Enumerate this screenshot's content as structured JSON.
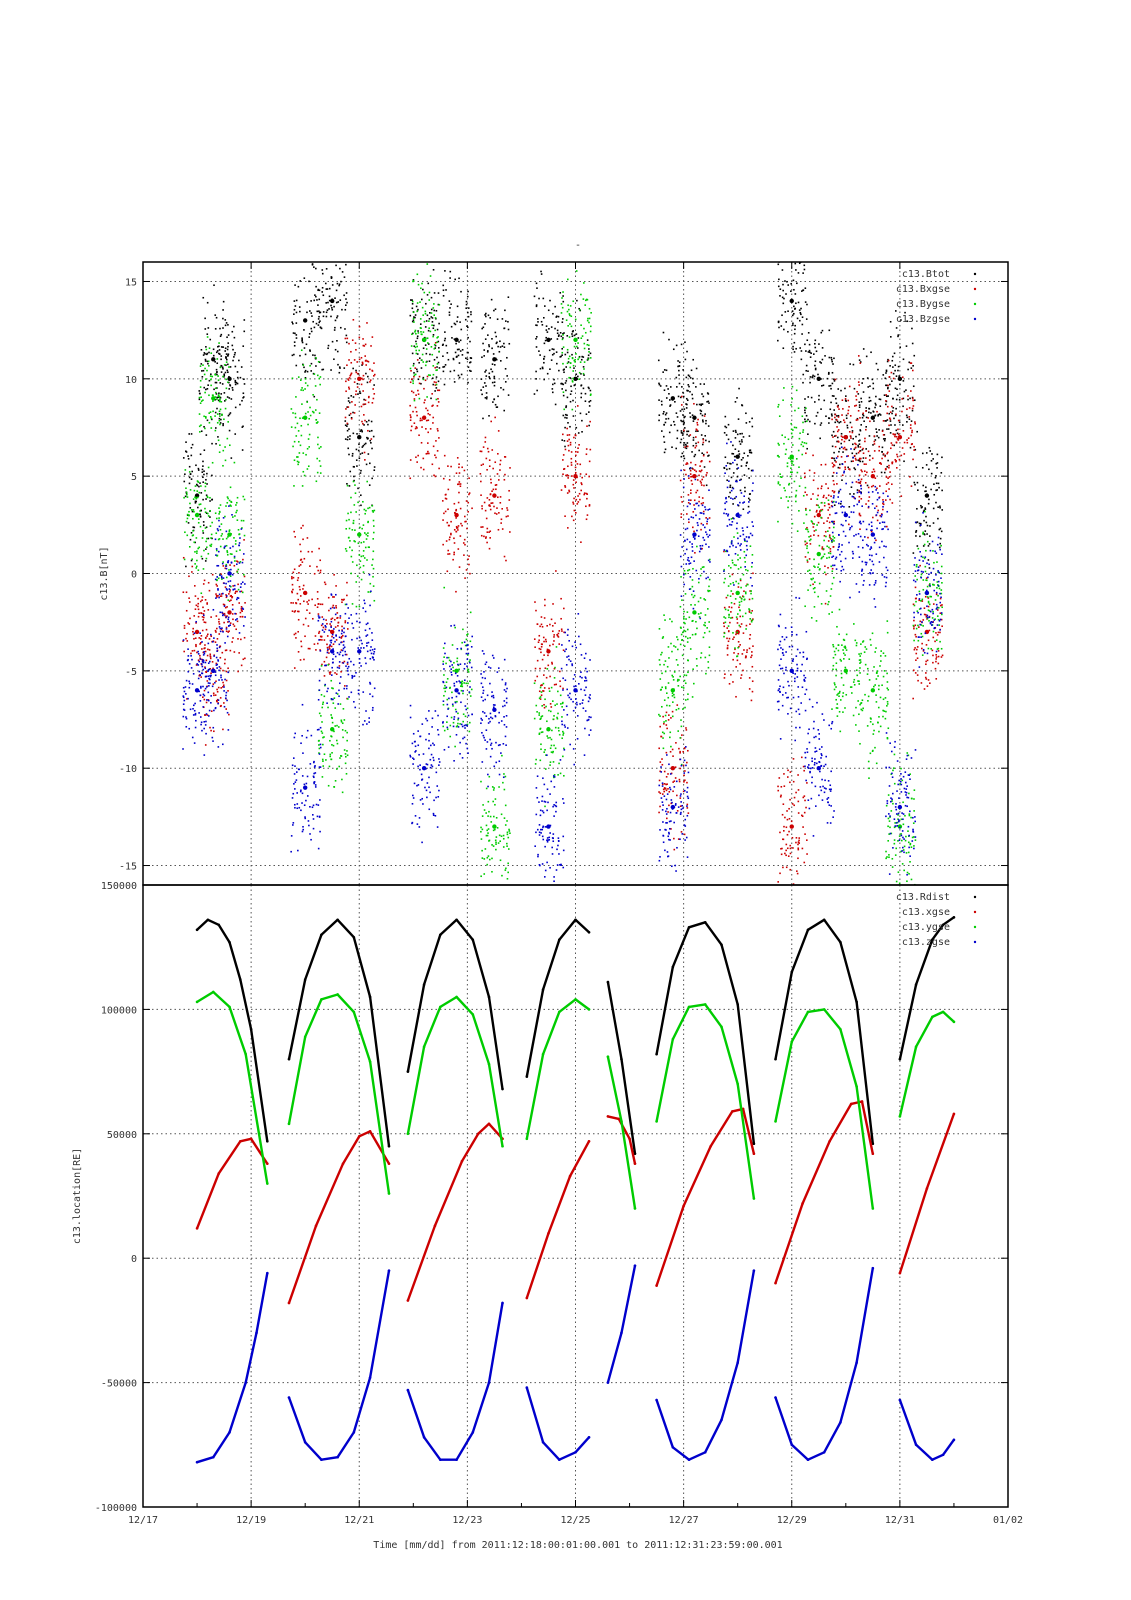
{
  "page_title": "-",
  "x_title": "Time [mm/dd]  from 2011:12:18:00:01:00.001  to  2011:12:31:23:59:00.001",
  "x_tick_labels": [
    "12/17",
    "12/19",
    "12/21",
    "12/23",
    "12/25",
    "12/27",
    "12/29",
    "12/31",
    "01/02"
  ],
  "chart_data": [
    {
      "type": "scatter",
      "title": "",
      "ylabel": "c13.B[nT]",
      "xlabel": "",
      "xlim": [
        "12/17",
        "01/02"
      ],
      "ylim": [
        -16,
        16
      ],
      "yticks": [
        -15,
        -10,
        -5,
        0,
        5,
        10,
        15
      ],
      "x_unit": "days (day-of-month, December 2011)",
      "grid": true,
      "legend": "top-right",
      "series": [
        {
          "name": "c13.Btot",
          "color": "#000000",
          "x": [
            18.0,
            18.3,
            18.6,
            20.0,
            20.5,
            21.0,
            22.2,
            22.8,
            23.5,
            24.5,
            25.0,
            26.8,
            27.2,
            28.0,
            29.0,
            29.5,
            30.0,
            30.5,
            31.0,
            31.5
          ],
          "values": [
            4,
            11,
            10,
            13,
            14,
            7,
            12,
            12,
            11,
            12,
            10,
            9,
            8,
            6,
            14,
            10,
            7,
            8,
            10,
            4
          ]
        },
        {
          "name": "c13.Bxgse",
          "color": "#cc0000",
          "x": [
            18.0,
            18.3,
            18.6,
            20.0,
            20.5,
            21.0,
            22.2,
            22.8,
            23.5,
            24.5,
            25.0,
            26.8,
            27.2,
            28.0,
            29.0,
            29.5,
            30.0,
            30.5,
            31.0,
            31.5
          ],
          "values": [
            -3,
            -5,
            -2,
            -1,
            -3,
            10,
            8,
            3,
            4,
            -4,
            5,
            -10,
            5,
            -3,
            -13,
            3,
            7,
            5,
            7,
            -3
          ]
        },
        {
          "name": "c13.Bygse",
          "color": "#00cc00",
          "x": [
            18.0,
            18.3,
            18.6,
            20.0,
            20.5,
            21.0,
            22.2,
            22.8,
            23.5,
            24.5,
            25.0,
            26.8,
            27.2,
            28.0,
            29.0,
            29.5,
            30.0,
            30.5,
            31.0,
            31.5
          ],
          "values": [
            3,
            9,
            2,
            8,
            -8,
            2,
            12,
            -5,
            -13,
            -8,
            12,
            -6,
            -2,
            -1,
            6,
            1,
            -5,
            -6,
            -13,
            -1
          ]
        },
        {
          "name": "c13.Bzgse",
          "color": "#0000cc",
          "x": [
            18.0,
            18.3,
            18.6,
            20.0,
            20.5,
            21.0,
            22.2,
            22.8,
            23.5,
            24.5,
            25.0,
            26.8,
            27.2,
            28.0,
            29.0,
            29.5,
            30.0,
            30.5,
            31.0,
            31.5
          ],
          "values": [
            -6,
            -5,
            0,
            -11,
            -4,
            -4,
            -10,
            -6,
            -7,
            -13,
            -6,
            -12,
            2,
            3,
            -5,
            -10,
            3,
            2,
            -12,
            -1
          ]
        }
      ]
    },
    {
      "type": "line",
      "title": "",
      "ylabel": "c13.location[RE]",
      "xlabel": "",
      "xlim": [
        "12/17",
        "01/02"
      ],
      "ylim": [
        -100000,
        150000
      ],
      "yticks": [
        -100000,
        -50000,
        0,
        50000,
        100000,
        150000
      ],
      "x_unit": "days (day-of-month, December 2011)",
      "grid": true,
      "legend": "top-right",
      "segments_x_ranges": [
        [
          18.0,
          19.3
        ],
        [
          19.7,
          21.55
        ],
        [
          21.9,
          23.65
        ],
        [
          24.1,
          25.25
        ],
        [
          25.6,
          26.1
        ],
        [
          26.5,
          28.3
        ],
        [
          28.7,
          30.5
        ],
        [
          31.0,
          32.0
        ]
      ],
      "series": [
        {
          "name": "c13.Rdist",
          "color": "#000000",
          "segments": [
            {
              "x": [
                18.0,
                18.2,
                18.4,
                18.6,
                18.8,
                19.0,
                19.3
              ],
              "values": [
                132000,
                136000,
                134000,
                127000,
                112000,
                92000,
                47000
              ]
            },
            {
              "x": [
                19.7,
                20.0,
                20.3,
                20.6,
                20.9,
                21.2,
                21.55
              ],
              "values": [
                80000,
                112000,
                130000,
                136000,
                129000,
                105000,
                45000
              ]
            },
            {
              "x": [
                21.9,
                22.2,
                22.5,
                22.8,
                23.1,
                23.4,
                23.65
              ],
              "values": [
                75000,
                110000,
                130000,
                136000,
                128000,
                105000,
                68000
              ]
            },
            {
              "x": [
                24.1,
                24.4,
                24.7,
                25.0,
                25.25
              ],
              "values": [
                73000,
                108000,
                128000,
                136000,
                131000
              ]
            },
            {
              "x": [
                25.6,
                25.85,
                26.1
              ],
              "values": [
                111000,
                80000,
                42000
              ]
            },
            {
              "x": [
                26.5,
                26.8,
                27.1,
                27.4,
                27.7,
                28.0,
                28.3
              ],
              "values": [
                82000,
                117000,
                133000,
                135000,
                126000,
                102000,
                46000
              ]
            },
            {
              "x": [
                28.7,
                29.0,
                29.3,
                29.6,
                29.9,
                30.2,
                30.5
              ],
              "values": [
                80000,
                115000,
                132000,
                136000,
                127000,
                103000,
                46000
              ]
            },
            {
              "x": [
                31.0,
                31.3,
                31.6,
                31.8,
                32.0
              ],
              "values": [
                80000,
                110000,
                128000,
                134000,
                137000
              ]
            }
          ]
        },
        {
          "name": "c13.xgse",
          "color": "#cc0000",
          "segments": [
            {
              "x": [
                18.0,
                18.4,
                18.8,
                19.0,
                19.3
              ],
              "values": [
                12000,
                34000,
                47000,
                48000,
                38000
              ]
            },
            {
              "x": [
                19.7,
                20.2,
                20.7,
                21.0,
                21.2,
                21.55
              ],
              "values": [
                -18000,
                13000,
                38000,
                49000,
                51000,
                38000
              ]
            },
            {
              "x": [
                21.9,
                22.4,
                22.9,
                23.2,
                23.4,
                23.65
              ],
              "values": [
                -17000,
                13000,
                39000,
                50000,
                54000,
                48000
              ]
            },
            {
              "x": [
                24.1,
                24.5,
                24.9,
                25.25
              ],
              "values": [
                -16000,
                10000,
                33000,
                47000
              ]
            },
            {
              "x": [
                25.6,
                25.8,
                26.0,
                26.1
              ],
              "values": [
                57000,
                56000,
                48000,
                38000
              ]
            },
            {
              "x": [
                26.5,
                27.0,
                27.5,
                27.9,
                28.1,
                28.3
              ],
              "values": [
                -11000,
                21000,
                45000,
                59000,
                60000,
                42000
              ]
            },
            {
              "x": [
                28.7,
                29.2,
                29.7,
                30.1,
                30.3,
                30.5
              ],
              "values": [
                -10000,
                22000,
                47000,
                62000,
                63000,
                42000
              ]
            },
            {
              "x": [
                31.0,
                31.5,
                32.0
              ],
              "values": [
                -6000,
                28000,
                58000
              ]
            }
          ]
        },
        {
          "name": "c13.ygse",
          "color": "#00cc00",
          "segments": [
            {
              "x": [
                18.0,
                18.3,
                18.6,
                18.9,
                19.3
              ],
              "values": [
                103000,
                107000,
                101000,
                82000,
                30000
              ]
            },
            {
              "x": [
                19.7,
                20.0,
                20.3,
                20.6,
                20.9,
                21.2,
                21.55
              ],
              "values": [
                54000,
                89000,
                104000,
                106000,
                99000,
                79000,
                26000
              ]
            },
            {
              "x": [
                21.9,
                22.2,
                22.5,
                22.8,
                23.1,
                23.4,
                23.65
              ],
              "values": [
                50000,
                85000,
                101000,
                105000,
                98000,
                78000,
                45000
              ]
            },
            {
              "x": [
                24.1,
                24.4,
                24.7,
                25.0,
                25.25
              ],
              "values": [
                48000,
                82000,
                99000,
                104000,
                100000
              ]
            },
            {
              "x": [
                25.6,
                25.85,
                26.1
              ],
              "values": [
                81000,
                55000,
                20000
              ]
            },
            {
              "x": [
                26.5,
                26.8,
                27.1,
                27.4,
                27.7,
                28.0,
                28.3
              ],
              "values": [
                55000,
                88000,
                101000,
                102000,
                93000,
                70000,
                24000
              ]
            },
            {
              "x": [
                28.7,
                29.0,
                29.3,
                29.6,
                29.9,
                30.2,
                30.5
              ],
              "values": [
                55000,
                87000,
                99000,
                100000,
                92000,
                69000,
                20000
              ]
            },
            {
              "x": [
                31.0,
                31.3,
                31.6,
                31.8,
                32.0
              ],
              "values": [
                57000,
                85000,
                97000,
                99000,
                95000
              ]
            }
          ]
        },
        {
          "name": "c13.zgse",
          "color": "#0000cc",
          "segments": [
            {
              "x": [
                18.0,
                18.3,
                18.6,
                18.9,
                19.1,
                19.3
              ],
              "values": [
                -82000,
                -80000,
                -70000,
                -50000,
                -30000,
                -6000
              ]
            },
            {
              "x": [
                19.7,
                20.0,
                20.3,
                20.6,
                20.9,
                21.2,
                21.55
              ],
              "values": [
                -56000,
                -74000,
                -81000,
                -80000,
                -70000,
                -48000,
                -5000
              ]
            },
            {
              "x": [
                21.9,
                22.2,
                22.5,
                22.8,
                23.1,
                23.4,
                23.65
              ],
              "values": [
                -53000,
                -72000,
                -81000,
                -81000,
                -70000,
                -50000,
                -18000
              ]
            },
            {
              "x": [
                24.1,
                24.4,
                24.7,
                25.0,
                25.25
              ],
              "values": [
                -52000,
                -74000,
                -81000,
                -78000,
                -72000
              ]
            },
            {
              "x": [
                25.6,
                25.85,
                26.1
              ],
              "values": [
                -50000,
                -30000,
                -3000
              ]
            },
            {
              "x": [
                26.5,
                26.8,
                27.1,
                27.4,
                27.7,
                28.0,
                28.3
              ],
              "values": [
                -57000,
                -76000,
                -81000,
                -78000,
                -65000,
                -42000,
                -5000
              ]
            },
            {
              "x": [
                28.7,
                29.0,
                29.3,
                29.6,
                29.9,
                30.2,
                30.5
              ],
              "values": [
                -56000,
                -75000,
                -81000,
                -78000,
                -66000,
                -42000,
                -4000
              ]
            },
            {
              "x": [
                31.0,
                31.3,
                31.6,
                31.8,
                32.0
              ],
              "values": [
                -57000,
                -75000,
                -81000,
                -79000,
                -73000
              ]
            }
          ]
        }
      ]
    }
  ]
}
